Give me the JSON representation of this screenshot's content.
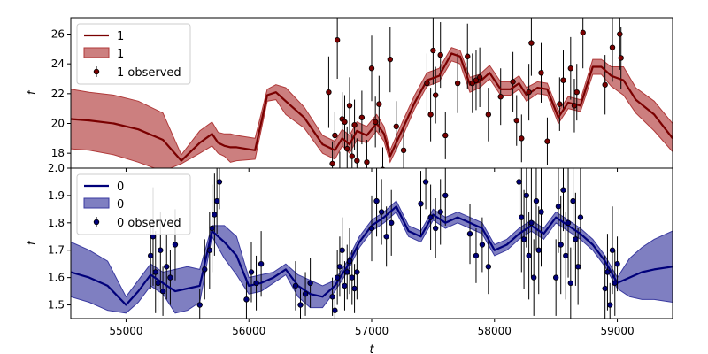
{
  "chart_data": [
    {
      "type": "line",
      "panel": "top",
      "ylabel": "f",
      "xlim": [
        54550,
        59450
      ],
      "ylim": [
        17.0,
        27.1
      ],
      "xticks": [
        55000,
        56000,
        57000,
        58000,
        59000
      ],
      "yticks": [
        18,
        20,
        22,
        24,
        26
      ],
      "ytick_labels": [
        "18",
        "20",
        "22",
        "24",
        "26"
      ],
      "colors": {
        "line": "#7a0000",
        "band": "#b03a3a",
        "points": "#7a0000",
        "errorbar": "#000000"
      },
      "legend": {
        "placement": "top-left",
        "entries": [
          "1",
          "1",
          "1 observed"
        ]
      },
      "series": [
        {
          "name": "1",
          "kind": "line",
          "x": [
            54550,
            54700,
            54900,
            55100,
            55300,
            55450,
            55600,
            55700,
            55750,
            55800,
            55850,
            55900,
            56050,
            56150,
            56220,
            56300,
            56450,
            56600,
            56700,
            56760,
            56820,
            56880,
            56960,
            57040,
            57100,
            57150,
            57250,
            57350,
            57450,
            57550,
            57650,
            57720,
            57800,
            57880,
            57960,
            58050,
            58130,
            58200,
            58260,
            58350,
            58430,
            58520,
            58600,
            58700,
            58800,
            58870,
            58950,
            59050,
            59150,
            59300,
            59450
          ],
          "y": [
            20.3,
            20.2,
            20.0,
            19.6,
            18.9,
            17.5,
            18.7,
            19.3,
            18.7,
            18.5,
            18.4,
            18.4,
            18.2,
            21.9,
            22.1,
            21.5,
            20.4,
            18.6,
            18.2,
            19.0,
            18.6,
            19.5,
            19.2,
            20.0,
            19.3,
            17.8,
            19.6,
            21.4,
            22.9,
            23.2,
            24.7,
            24.5,
            22.6,
            22.8,
            23.4,
            22.3,
            22.3,
            22.7,
            21.9,
            22.4,
            22.3,
            20.4,
            21.4,
            21.2,
            23.8,
            23.8,
            23.2,
            22.9,
            21.6,
            20.6,
            19.0
          ]
        },
        {
          "name": "1",
          "kind": "band",
          "x": [
            54550,
            54700,
            54900,
            55100,
            55300,
            55450,
            55600,
            55700,
            55750,
            55800,
            55850,
            55900,
            56050,
            56150,
            56220,
            56300,
            56450,
            56600,
            56700,
            56760,
            56820,
            56880,
            56960,
            57040,
            57100,
            57150,
            57250,
            57350,
            57450,
            57550,
            57650,
            57720,
            57800,
            57880,
            57960,
            58050,
            58130,
            58200,
            58260,
            58350,
            58430,
            58520,
            58600,
            58700,
            58800,
            58870,
            58950,
            59050,
            59150,
            59300,
            59450
          ],
          "lower": [
            18.3,
            18.2,
            17.9,
            17.4,
            16.8,
            17.3,
            18.0,
            18.5,
            18.0,
            17.8,
            17.4,
            17.5,
            17.6,
            21.5,
            21.6,
            20.6,
            19.7,
            18.0,
            17.6,
            18.5,
            18.0,
            18.9,
            18.7,
            19.5,
            18.8,
            17.4,
            19.1,
            21.0,
            22.5,
            22.8,
            24.2,
            24.0,
            22.1,
            22.4,
            23.0,
            21.9,
            21.9,
            22.3,
            21.5,
            22.0,
            21.9,
            20.0,
            21.0,
            20.8,
            23.3,
            23.3,
            22.5,
            21.9,
            20.7,
            19.5,
            18.1
          ],
          "upper": [
            22.3,
            22.1,
            21.9,
            21.5,
            20.7,
            17.9,
            19.5,
            20.1,
            19.4,
            19.3,
            19.3,
            19.2,
            19.0,
            22.3,
            22.6,
            22.4,
            21.1,
            19.2,
            18.8,
            19.6,
            19.2,
            20.1,
            19.8,
            20.6,
            19.8,
            18.2,
            20.1,
            21.9,
            23.4,
            23.7,
            25.1,
            24.9,
            23.1,
            23.3,
            23.9,
            22.8,
            22.8,
            23.2,
            22.4,
            22.8,
            22.7,
            20.8,
            21.8,
            21.6,
            24.3,
            24.3,
            23.8,
            23.8,
            22.4,
            21.5,
            20.0
          ]
        },
        {
          "name": "1 observed",
          "kind": "errorbar",
          "x": [
            56650,
            56680,
            56700,
            56720,
            56740,
            56760,
            56780,
            56800,
            56820,
            56840,
            56860,
            56880,
            56920,
            56960,
            57000,
            57030,
            57060,
            57090,
            57150,
            57200,
            57260,
            57450,
            57480,
            57500,
            57520,
            57560,
            57600,
            57700,
            57780,
            57820,
            57850,
            57880,
            57950,
            58050,
            58150,
            58180,
            58220,
            58280,
            58300,
            58380,
            58430,
            58530,
            58560,
            58620,
            58650,
            58670,
            58720,
            58900,
            58960,
            59020,
            59030
          ],
          "y": [
            22.1,
            17.3,
            19.2,
            25.6,
            16.6,
            20.3,
            20.1,
            18.3,
            21.2,
            17.8,
            19.9,
            17.5,
            20.4,
            17.4,
            23.7,
            20.1,
            21.3,
            16.9,
            24.3,
            19.8,
            18.2,
            22.7,
            20.6,
            24.9,
            21.9,
            24.6,
            19.2,
            22.7,
            24.5,
            22.7,
            22.9,
            23.1,
            20.6,
            21.8,
            22.8,
            20.2,
            19.0,
            22.1,
            25.4,
            23.4,
            18.8,
            21.3,
            22.9,
            23.7,
            21.2,
            22.1,
            26.1,
            22.6,
            25.1,
            26.0,
            24.4
          ],
          "yerr": [
            2.4,
            1.5,
            1.6,
            2.6,
            1.5,
            1.8,
            1.8,
            1.5,
            1.9,
            1.5,
            1.7,
            1.5,
            1.8,
            1.5,
            2.2,
            1.7,
            1.9,
            1.5,
            2.2,
            1.7,
            1.6,
            2.0,
            1.8,
            2.3,
            1.9,
            2.2,
            1.6,
            2.0,
            2.2,
            2.0,
            2.0,
            2.0,
            1.8,
            1.9,
            2.0,
            1.7,
            1.6,
            1.9,
            2.2,
            2.0,
            1.6,
            1.8,
            2.0,
            2.1,
            1.8,
            1.9,
            2.4,
            2.0,
            2.3,
            2.4,
            2.1
          ]
        }
      ]
    },
    {
      "type": "line",
      "panel": "bottom",
      "xlabel": "t",
      "ylabel": "f",
      "xlim": [
        54550,
        59450
      ],
      "ylim": [
        1.45,
        2.0
      ],
      "xticks": [
        55000,
        56000,
        57000,
        58000,
        59000
      ],
      "yticks": [
        1.5,
        1.6,
        1.7,
        1.8,
        1.9,
        2.0
      ],
      "ytick_labels": [
        "1.5",
        "1.6",
        "1.7",
        "1.8",
        "1.9",
        "2.0"
      ],
      "colors": {
        "line": "#00007a",
        "band": "#3a3aa0",
        "points": "#00007a",
        "errorbar": "#000000"
      },
      "legend": {
        "placement": "top-left",
        "entries": [
          "0",
          "0",
          "0 observed"
        ]
      },
      "series": [
        {
          "name": "0",
          "kind": "line",
          "x": [
            54550,
            54700,
            54850,
            55000,
            55100,
            55200,
            55300,
            55400,
            55500,
            55600,
            55700,
            55800,
            55900,
            56000,
            56100,
            56200,
            56300,
            56400,
            56500,
            56600,
            56700,
            56800,
            56900,
            57000,
            57100,
            57200,
            57300,
            57400,
            57500,
            57600,
            57700,
            57800,
            57900,
            58000,
            58100,
            58200,
            58300,
            58400,
            58500,
            58600,
            58700,
            58800,
            58900,
            59000,
            59100,
            59200,
            59300,
            59450
          ],
          "y": [
            1.62,
            1.6,
            1.57,
            1.5,
            1.55,
            1.61,
            1.58,
            1.55,
            1.56,
            1.57,
            1.77,
            1.73,
            1.68,
            1.57,
            1.58,
            1.6,
            1.63,
            1.57,
            1.54,
            1.53,
            1.57,
            1.64,
            1.73,
            1.79,
            1.82,
            1.86,
            1.77,
            1.75,
            1.83,
            1.8,
            1.82,
            1.8,
            1.78,
            1.7,
            1.72,
            1.76,
            1.79,
            1.76,
            1.82,
            1.79,
            1.76,
            1.72,
            1.66,
            1.58,
            1.6,
            1.62,
            1.63,
            1.64
          ]
        },
        {
          "name": "0",
          "kind": "band",
          "x": [
            54550,
            54700,
            54850,
            55000,
            55100,
            55200,
            55300,
            55400,
            55500,
            55600,
            55700,
            55800,
            55900,
            56000,
            56100,
            56200,
            56300,
            56400,
            56500,
            56600,
            56700,
            56800,
            56900,
            57000,
            57100,
            57200,
            57300,
            57400,
            57500,
            57600,
            57700,
            57800,
            57900,
            58000,
            58100,
            58200,
            58300,
            58400,
            58500,
            58600,
            58700,
            58800,
            58900,
            59000,
            59100,
            59200,
            59300,
            59450
          ],
          "lower": [
            1.53,
            1.51,
            1.48,
            1.47,
            1.51,
            1.57,
            1.54,
            1.47,
            1.48,
            1.51,
            1.75,
            1.67,
            1.61,
            1.54,
            1.55,
            1.58,
            1.61,
            1.53,
            1.49,
            1.49,
            1.55,
            1.62,
            1.71,
            1.77,
            1.8,
            1.84,
            1.75,
            1.73,
            1.81,
            1.78,
            1.8,
            1.78,
            1.76,
            1.68,
            1.7,
            1.74,
            1.77,
            1.74,
            1.8,
            1.77,
            1.74,
            1.7,
            1.64,
            1.56,
            1.53,
            1.52,
            1.52,
            1.51
          ],
          "upper": [
            1.73,
            1.7,
            1.66,
            1.53,
            1.59,
            1.65,
            1.62,
            1.63,
            1.64,
            1.63,
            1.79,
            1.79,
            1.75,
            1.6,
            1.61,
            1.62,
            1.65,
            1.61,
            1.59,
            1.57,
            1.59,
            1.66,
            1.75,
            1.81,
            1.84,
            1.88,
            1.79,
            1.77,
            1.85,
            1.82,
            1.84,
            1.82,
            1.8,
            1.72,
            1.74,
            1.78,
            1.81,
            1.78,
            1.84,
            1.81,
            1.78,
            1.74,
            1.68,
            1.6,
            1.67,
            1.71,
            1.74,
            1.77
          ]
        },
        {
          "name": "0 observed",
          "kind": "errorbar",
          "x": [
            55200,
            55220,
            55240,
            55260,
            55280,
            55300,
            55330,
            55360,
            55400,
            55600,
            55640,
            55680,
            55700,
            55720,
            55740,
            55760,
            55980,
            56020,
            56060,
            56100,
            56380,
            56420,
            56460,
            56500,
            56680,
            56700,
            56720,
            56740,
            56760,
            56780,
            56800,
            56820,
            56840,
            56860,
            56880,
            57000,
            57040,
            57080,
            57120,
            57160,
            57400,
            57440,
            57480,
            57520,
            57560,
            57600,
            57800,
            57850,
            57900,
            57950,
            58200,
            58220,
            58240,
            58260,
            58280,
            58300,
            58320,
            58340,
            58360,
            58380,
            58500,
            58520,
            58540,
            58560,
            58580,
            58600,
            58620,
            58640,
            58660,
            58680,
            58700,
            58900,
            58920,
            58940,
            58960,
            58980,
            59000
          ],
          "y": [
            1.68,
            1.75,
            1.62,
            1.58,
            1.7,
            1.55,
            1.64,
            1.6,
            1.72,
            1.5,
            1.63,
            1.7,
            1.78,
            1.83,
            1.88,
            1.95,
            1.52,
            1.62,
            1.58,
            1.65,
            1.57,
            1.5,
            1.54,
            1.58,
            1.53,
            1.48,
            1.6,
            1.64,
            1.7,
            1.57,
            1.62,
            1.66,
            1.6,
            1.56,
            1.62,
            1.78,
            1.88,
            1.84,
            1.75,
            1.8,
            1.87,
            1.95,
            1.82,
            1.78,
            1.84,
            1.9,
            1.76,
            1.68,
            1.72,
            1.64,
            1.95,
            1.82,
            1.74,
            1.9,
            1.68,
            1.8,
            1.6,
            1.88,
            1.7,
            1.84,
            1.6,
            1.86,
            1.72,
            1.92,
            1.68,
            1.8,
            1.58,
            1.88,
            1.74,
            1.64,
            1.82,
            1.56,
            1.62,
            1.5,
            1.7,
            1.58,
            1.65
          ],
          "yerr": [
            0.12,
            0.18,
            0.15,
            0.1,
            0.14,
            0.09,
            0.12,
            0.1,
            0.13,
            0.06,
            0.11,
            0.14,
            0.16,
            0.15,
            0.12,
            0.1,
            0.08,
            0.11,
            0.1,
            0.12,
            0.09,
            0.06,
            0.08,
            0.09,
            0.07,
            0.05,
            0.1,
            0.11,
            0.12,
            0.09,
            0.1,
            0.12,
            0.1,
            0.09,
            0.1,
            0.12,
            0.13,
            0.12,
            0.11,
            0.12,
            0.12,
            0.1,
            0.12,
            0.11,
            0.12,
            0.11,
            0.11,
            0.1,
            0.1,
            0.1,
            0.15,
            0.2,
            0.18,
            0.19,
            0.16,
            0.2,
            0.14,
            0.18,
            0.16,
            0.2,
            0.14,
            0.17,
            0.18,
            0.15,
            0.16,
            0.2,
            0.13,
            0.18,
            0.17,
            0.14,
            0.19,
            0.12,
            0.14,
            0.08,
            0.16,
            0.12,
            0.1
          ]
        }
      ]
    }
  ]
}
